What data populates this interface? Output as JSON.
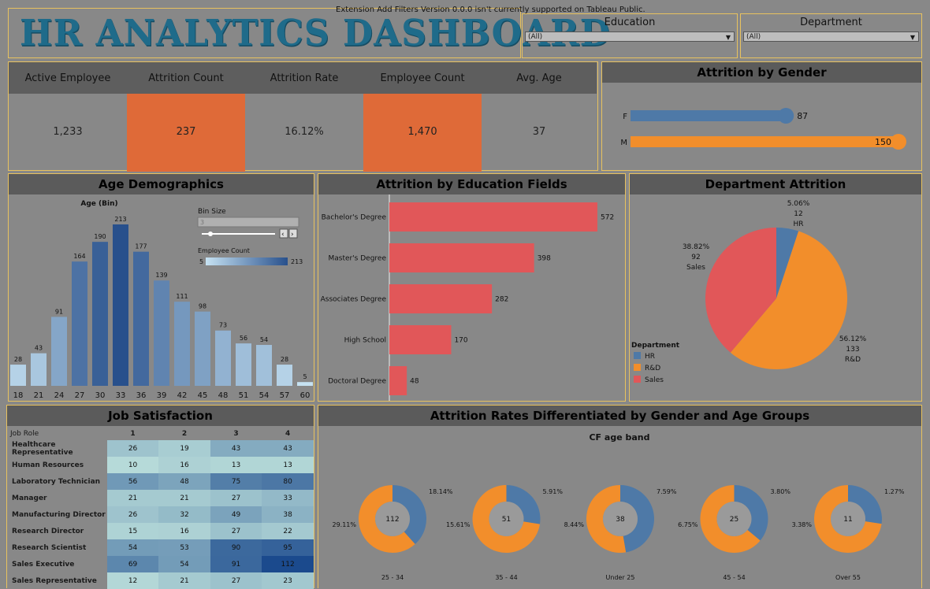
{
  "header": {
    "title": "HR ANALYTICS DASHBOARD",
    "extension_note": "Extension Add Filters Version 0.0.0 isn't currently supported on Tableau Public."
  },
  "filters": [
    {
      "label": "Education",
      "value": "(All)"
    },
    {
      "label": "Department",
      "value": "(All)"
    }
  ],
  "kpis": [
    {
      "label": "Active Employee",
      "value": "1,233",
      "highlight": false
    },
    {
      "label": "Attrition Count",
      "value": "237",
      "highlight": true
    },
    {
      "label": "Attrition Rate",
      "value": "16.12%",
      "highlight": false
    },
    {
      "label": "Employee Count",
      "value": "1,470",
      "highlight": true
    },
    {
      "label": "Avg. Age",
      "value": "37",
      "highlight": false
    }
  ],
  "colors": {
    "accent": "#df6a38",
    "border": "#e8c25f",
    "female": "#4e79a7",
    "male": "#f28e2b",
    "sales": "#e15759",
    "bar_edu": "#e15759"
  },
  "panels": {
    "gender": "Attrition by Gender",
    "age": "Age Demographics",
    "edu": "Attrition by Education Fields",
    "dept": "Department Attrition",
    "js": "Job Satisfaction",
    "ag": "Attrition Rates Differentiated by Gender and Age Groups"
  },
  "chart_data": [
    {
      "type": "bar",
      "title": "Attrition by Gender",
      "categories": [
        "F",
        "M"
      ],
      "values": [
        87,
        150
      ],
      "xlim": [
        0,
        150
      ]
    },
    {
      "type": "bar",
      "title": "Age Demographics",
      "xlabel": "Age (Bin)",
      "categories": [
        "18",
        "21",
        "24",
        "27",
        "30",
        "33",
        "36",
        "39",
        "42",
        "45",
        "48",
        "51",
        "54",
        "57",
        "60"
      ],
      "values": [
        28,
        43,
        91,
        164,
        190,
        213,
        177,
        139,
        111,
        98,
        73,
        56,
        54,
        28,
        5
      ],
      "ylim": [
        0,
        213
      ],
      "bin_size_label": "Bin Size",
      "bin_size_value": "3",
      "color_legend": {
        "title": "Employee Count",
        "min": "5",
        "max": "213"
      }
    },
    {
      "type": "bar",
      "title": "Attrition by Education Fields",
      "categories": [
        "Bachelor's Degree",
        "Master's Degree",
        "Associates Degree",
        "High School",
        "Doctoral Degree"
      ],
      "values": [
        572,
        398,
        282,
        170,
        48
      ],
      "xlim": [
        0,
        572
      ]
    },
    {
      "type": "pie",
      "title": "Department Attrition",
      "legend_title": "Department",
      "legend_position": "bottom-left",
      "slices": [
        {
          "name": "HR",
          "value": 12,
          "pct": "5.06%",
          "count": "12"
        },
        {
          "name": "R&D",
          "value": 133,
          "pct": "56.12%",
          "count": "133"
        },
        {
          "name": "Sales",
          "value": 92,
          "pct": "38.82%",
          "count": "92"
        }
      ]
    },
    {
      "type": "heatmap",
      "title": "Job Satisfaction",
      "row_header": "Job Role",
      "columns": [
        "1",
        "2",
        "3",
        "4"
      ],
      "rows": [
        {
          "role": "Healthcare Representative",
          "values": [
            26,
            19,
            43,
            43
          ]
        },
        {
          "role": "Human Resources",
          "values": [
            10,
            16,
            13,
            13
          ]
        },
        {
          "role": "Laboratory Technician",
          "values": [
            56,
            48,
            75,
            80
          ]
        },
        {
          "role": "Manager",
          "values": [
            21,
            21,
            27,
            33
          ]
        },
        {
          "role": "Manufacturing Director",
          "values": [
            26,
            32,
            49,
            38
          ]
        },
        {
          "role": "Research Director",
          "values": [
            15,
            16,
            27,
            22
          ]
        },
        {
          "role": "Research Scientist",
          "values": [
            54,
            53,
            90,
            95
          ]
        },
        {
          "role": "Sales Executive",
          "values": [
            69,
            54,
            91,
            112
          ]
        },
        {
          "role": "Sales Representative",
          "values": [
            12,
            21,
            27,
            23
          ]
        }
      ]
    },
    {
      "type": "pie",
      "title": "Attrition Rates Differentiated by Gender and Age Groups",
      "subtitle": "CF age band",
      "groups": [
        {
          "band": "25 - 34",
          "total": "112",
          "female": 18.14,
          "male": 29.11,
          "female_label": "18.14%",
          "male_label": "29.11%"
        },
        {
          "band": "35 - 44",
          "total": "51",
          "female": 5.91,
          "male": 15.61,
          "female_label": "5.91%",
          "male_label": "15.61%"
        },
        {
          "band": "Under 25",
          "total": "38",
          "female": 7.59,
          "male": 8.44,
          "female_label": "7.59%",
          "male_label": "8.44%"
        },
        {
          "band": "45 - 54",
          "total": "25",
          "female": 3.8,
          "male": 6.75,
          "female_label": "3.80%",
          "male_label": "6.75%"
        },
        {
          "band": "Over 55",
          "total": "11",
          "female": 1.27,
          "male": 3.38,
          "female_label": "1.27%",
          "male_label": "3.38%"
        }
      ]
    }
  ]
}
